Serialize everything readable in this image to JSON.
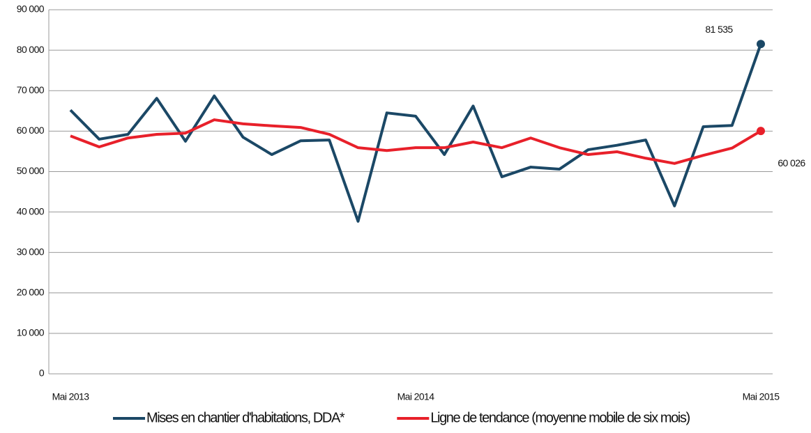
{
  "chart_data": {
    "type": "line",
    "categories": [
      "Mai 2013",
      null,
      null,
      null,
      null,
      null,
      null,
      null,
      null,
      null,
      null,
      null,
      "Mai 2014",
      null,
      null,
      null,
      null,
      null,
      null,
      null,
      null,
      null,
      null,
      null,
      "Mai 2015"
    ],
    "series": [
      {
        "name": "Mises en chantier d'habitations, DDA*",
        "color": "#1b4866",
        "values": [
          65200,
          58000,
          59200,
          68100,
          57500,
          68700,
          58500,
          54200,
          57600,
          57800,
          37700,
          64500,
          63700,
          54200,
          66200,
          48700,
          51100,
          50600,
          55400,
          56500,
          57800,
          41500,
          61100,
          61400,
          81535
        ],
        "value_labels": [
          null,
          null,
          null,
          null,
          null,
          null,
          null,
          null,
          null,
          null,
          null,
          null,
          null,
          null,
          null,
          null,
          null,
          null,
          null,
          null,
          null,
          null,
          null,
          null,
          "81 535"
        ]
      },
      {
        "name": "Ligne de tendance (moyenne mobile de six  mois)",
        "color": "#e8202a",
        "values": [
          58800,
          56100,
          58300,
          59200,
          59500,
          62800,
          61800,
          61300,
          60900,
          59200,
          55900,
          55200,
          55900,
          55900,
          57300,
          55900,
          58300,
          55900,
          54200,
          54900,
          53300,
          52000,
          54000,
          55800,
          60026
        ],
        "value_labels": [
          null,
          null,
          null,
          null,
          null,
          null,
          null,
          null,
          null,
          null,
          null,
          null,
          null,
          null,
          null,
          null,
          null,
          null,
          null,
          null,
          null,
          null,
          null,
          null,
          "60 026"
        ]
      }
    ],
    "ylim": [
      0,
      90000
    ],
    "yticks": [
      0,
      {
        "value": 10000,
        "label": "10 000"
      },
      {
        "value": 20000,
        "label": "20 000"
      },
      {
        "value": 30000,
        "label": "30 000"
      },
      {
        "value": 40000,
        "label": "40 000"
      },
      {
        "value": 50000,
        "label": "50 000"
      },
      {
        "value": 60000,
        "label": "60 000"
      },
      {
        "value": 70000,
        "label": "70 000"
      },
      {
        "value": 80000,
        "label": "80 000"
      },
      {
        "value": 90000,
        "label": "90 000"
      }
    ],
    "grid": true,
    "legend": "bottom"
  }
}
